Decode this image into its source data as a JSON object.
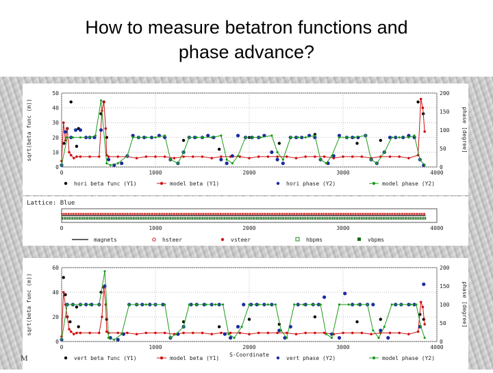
{
  "slide": {
    "title_line1": "How to measure betatron functions and",
    "title_line2": "phase advance?",
    "footer_mark": "M"
  },
  "colors": {
    "hori_beta": "#000000",
    "model_beta": "#d01010",
    "phase": "#1a2aa0",
    "model_phase": "#1a9a1a",
    "vbpm": "#1a6a1a",
    "hbpm": "#1a8a1a"
  },
  "chart_data": [
    {
      "type": "scatter",
      "panel": "horizontal",
      "xlim": [
        0,
        4000
      ],
      "xticks": [
        "0",
        "1000",
        "2000",
        "3000",
        "4000"
      ],
      "y1lim": [
        0,
        50
      ],
      "y1ticks": [
        "0",
        "10",
        "20",
        "30",
        "40",
        "50"
      ],
      "y1label": "sqrt(beta func (m))",
      "y2lim": [
        0,
        200
      ],
      "y2ticks": [
        "0",
        "50",
        "100",
        "150",
        "200"
      ],
      "y2label": "phase [degree]",
      "grid": true,
      "legend_position": "bottom",
      "legend": [
        "hori beta func (Y1)",
        "model beta (Y1)",
        "hori phase (Y2)",
        "model phase (Y2)"
      ],
      "series": [
        {
          "name": "hori beta func (Y1)",
          "axis": "y1",
          "style": "point",
          "x": [
            25,
            60,
            100,
            160,
            180,
            420,
            450,
            480,
            1300,
            1680,
            2000,
            2320,
            2700,
            3150,
            3400,
            3800,
            3855
          ],
          "y": [
            16,
            26,
            44,
            14,
            26,
            36,
            44,
            20,
            18,
            12,
            20,
            16,
            22,
            16,
            18,
            44,
            36
          ]
        },
        {
          "name": "model beta (Y1)",
          "axis": "y1",
          "style": "line-point",
          "x": [
            0,
            20,
            40,
            60,
            80,
            100,
            130,
            160,
            200,
            300,
            400,
            430,
            450,
            470,
            480,
            500,
            600,
            700,
            800,
            900,
            1000,
            1100,
            1200,
            1300,
            1400,
            1500,
            1600,
            1700,
            1800,
            1900,
            2000,
            2100,
            2200,
            2300,
            2400,
            2500,
            2600,
            2700,
            2800,
            2900,
            3000,
            3100,
            3200,
            3300,
            3400,
            3500,
            3600,
            3700,
            3800,
            3830,
            3850,
            3870
          ],
          "y": [
            4,
            30,
            18,
            26,
            10,
            8,
            6,
            7,
            7,
            7,
            7,
            38,
            44,
            26,
            8,
            7,
            7,
            7,
            6,
            7,
            7,
            7,
            6,
            7,
            7,
            7,
            6,
            7,
            7,
            7,
            6,
            7,
            7,
            7,
            7,
            6,
            7,
            7,
            7,
            6,
            7,
            7,
            7,
            6,
            7,
            7,
            7,
            6,
            8,
            46,
            40,
            24
          ]
        },
        {
          "name": "hori phase (Y2)",
          "axis": "y2",
          "style": "point",
          "x": [
            0,
            40,
            100,
            150,
            200,
            260,
            300,
            350,
            420,
            500,
            560,
            640,
            700,
            760,
            820,
            880,
            960,
            1040,
            1100,
            1160,
            1240,
            1300,
            1360,
            1420,
            1500,
            1560,
            1620,
            1700,
            1760,
            1820,
            1880,
            1960,
            2030,
            2100,
            2160,
            2240,
            2300,
            2360,
            2440,
            2500,
            2560,
            2640,
            2700,
            2760,
            2840,
            2900,
            2960,
            3040,
            3100,
            3160,
            3240,
            3300,
            3360,
            3440,
            3500,
            3560,
            3640,
            3700,
            3760,
            3820,
            3860
          ],
          "y": [
            5,
            95,
            80,
            100,
            100,
            80,
            80,
            80,
            100,
            20,
            5,
            10,
            30,
            85,
            80,
            80,
            80,
            85,
            80,
            20,
            10,
            40,
            80,
            80,
            80,
            85,
            80,
            20,
            10,
            30,
            85,
            80,
            80,
            80,
            85,
            40,
            20,
            10,
            80,
            80,
            80,
            85,
            80,
            20,
            10,
            30,
            85,
            80,
            80,
            80,
            85,
            20,
            10,
            40,
            80,
            80,
            80,
            85,
            80,
            20,
            5
          ]
        },
        {
          "name": "model phase (Y2)",
          "axis": "y2",
          "style": "line-point",
          "x": [
            0,
            60,
            120,
            200,
            300,
            360,
            420,
            480,
            520,
            600,
            700,
            760,
            820,
            900,
            1000,
            1100,
            1160,
            1240,
            1300,
            1360,
            1440,
            1500,
            1600,
            1700,
            1760,
            1820,
            1880,
            1960,
            2040,
            2120,
            2240,
            2300,
            2360,
            2440,
            2520,
            2600,
            2700,
            2760,
            2820,
            2880,
            2960,
            3040,
            3120,
            3240,
            3300,
            3360,
            3440,
            3520,
            3600,
            3700,
            3760,
            3820,
            3870
          ],
          "y": [
            5,
            80,
            80,
            80,
            80,
            85,
            180,
            10,
            5,
            10,
            30,
            80,
            80,
            80,
            80,
            85,
            20,
            10,
            40,
            80,
            80,
            80,
            80,
            85,
            20,
            10,
            30,
            80,
            80,
            80,
            85,
            40,
            20,
            80,
            80,
            80,
            85,
            20,
            10,
            30,
            80,
            80,
            80,
            85,
            20,
            10,
            40,
            80,
            80,
            80,
            85,
            20,
            5
          ]
        }
      ]
    },
    {
      "type": "scatter",
      "panel": "lattice",
      "title": "Lattice: Blue",
      "xlim": [
        0,
        4000
      ],
      "xticks": [
        "0",
        "1000",
        "2000",
        "3000",
        "4000"
      ],
      "legend_position": "bottom",
      "legend": [
        "magnets",
        "hsteer",
        "vsteer",
        "hbpms",
        "vbpms"
      ],
      "element_spacing_m": 18,
      "element_range": [
        0,
        3880
      ]
    },
    {
      "type": "scatter",
      "panel": "vertical",
      "xlim": [
        0,
        4000
      ],
      "xticks": [
        "0",
        "1000",
        "2000",
        "3000",
        "4000"
      ],
      "xlabel": "S-Coordinate",
      "y1lim": [
        0,
        60
      ],
      "y1ticks": [
        "0",
        "20",
        "40",
        "60"
      ],
      "y1label": "sqrt(beta func (m))",
      "y2lim": [
        0,
        200
      ],
      "y2ticks": [
        "0",
        "50",
        "100",
        "150",
        "200"
      ],
      "y2label": "phase [degree]",
      "grid": true,
      "legend_position": "bottom",
      "legend": [
        "vert beta func (Y1)",
        "model beta (Y1)",
        "vert phase (Y2)",
        "model phase (Y2)"
      ],
      "series": [
        {
          "name": "vert beta func (Y1)",
          "axis": "y1",
          "style": "point",
          "x": [
            20,
            40,
            60,
            90,
            160,
            180,
            420,
            450,
            480,
            1300,
            1680,
            2000,
            2320,
            2700,
            3150,
            3400,
            3820,
            3860
          ],
          "y": [
            52,
            38,
            20,
            16,
            28,
            12,
            40,
            44,
            18,
            16,
            12,
            18,
            14,
            20,
            16,
            18,
            22,
            18
          ]
        },
        {
          "name": "model beta (Y1)",
          "axis": "y1",
          "style": "line-point",
          "x": [
            0,
            20,
            40,
            60,
            80,
            100,
            130,
            160,
            200,
            300,
            400,
            430,
            450,
            470,
            480,
            500,
            600,
            700,
            800,
            900,
            1000,
            1100,
            1200,
            1300,
            1400,
            1500,
            1600,
            1700,
            1800,
            1900,
            2000,
            2100,
            2200,
            2300,
            2400,
            2500,
            2600,
            2700,
            2800,
            2900,
            3000,
            3100,
            3200,
            3300,
            3400,
            3500,
            3600,
            3700,
            3800,
            3830,
            3850,
            3870
          ],
          "y": [
            4,
            40,
            30,
            20,
            10,
            8,
            6,
            7,
            7,
            7,
            7,
            20,
            44,
            30,
            8,
            7,
            7,
            7,
            6,
            7,
            7,
            7,
            6,
            7,
            7,
            7,
            6,
            7,
            7,
            7,
            6,
            7,
            7,
            7,
            7,
            6,
            7,
            7,
            7,
            6,
            7,
            7,
            7,
            6,
            7,
            7,
            7,
            6,
            8,
            32,
            28,
            14
          ]
        },
        {
          "name": "vert phase (Y2)",
          "axis": "y2",
          "style": "point",
          "x": [
            0,
            60,
            120,
            200,
            260,
            320,
            400,
            460,
            520,
            600,
            660,
            720,
            800,
            860,
            940,
            1000,
            1080,
            1160,
            1240,
            1300,
            1380,
            1440,
            1520,
            1600,
            1680,
            1740,
            1800,
            1880,
            1940,
            2020,
            2080,
            2160,
            2240,
            2320,
            2380,
            2440,
            2520,
            2600,
            2680,
            2740,
            2800,
            2880,
            2960,
            3020,
            3100,
            3180,
            3260,
            3320,
            3400,
            3480,
            3560,
            3620,
            3700,
            3760,
            3820,
            3860
          ],
          "y": [
            5,
            100,
            100,
            100,
            100,
            100,
            100,
            150,
            10,
            5,
            20,
            100,
            100,
            100,
            100,
            100,
            100,
            10,
            20,
            40,
            100,
            100,
            100,
            100,
            100,
            20,
            10,
            40,
            100,
            100,
            100,
            100,
            100,
            30,
            10,
            40,
            100,
            100,
            100,
            100,
            120,
            20,
            10,
            130,
            100,
            100,
            100,
            100,
            30,
            10,
            100,
            100,
            100,
            100,
            40,
            155
          ]
        },
        {
          "name": "model phase (Y2)",
          "axis": "y2",
          "style": "line-point",
          "x": [
            0,
            60,
            120,
            200,
            300,
            400,
            460,
            500,
            560,
            640,
            720,
            800,
            900,
            1000,
            1100,
            1160,
            1220,
            1300,
            1360,
            1440,
            1540,
            1640,
            1720,
            1780,
            1840,
            1920,
            2000,
            2100,
            2200,
            2280,
            2340,
            2400,
            2480,
            2580,
            2680,
            2760,
            2820,
            2880,
            2960,
            3060,
            3160,
            3260,
            3320,
            3380,
            3440,
            3520,
            3620,
            3720,
            3780,
            3830,
            3870
          ],
          "y": [
            5,
            100,
            100,
            100,
            100,
            100,
            190,
            10,
            5,
            20,
            100,
            100,
            100,
            100,
            100,
            10,
            20,
            40,
            100,
            100,
            100,
            100,
            100,
            20,
            10,
            40,
            100,
            100,
            100,
            100,
            30,
            10,
            100,
            100,
            100,
            100,
            20,
            10,
            100,
            100,
            100,
            100,
            30,
            10,
            40,
            100,
            100,
            100,
            100,
            40,
            10
          ]
        }
      ]
    }
  ]
}
